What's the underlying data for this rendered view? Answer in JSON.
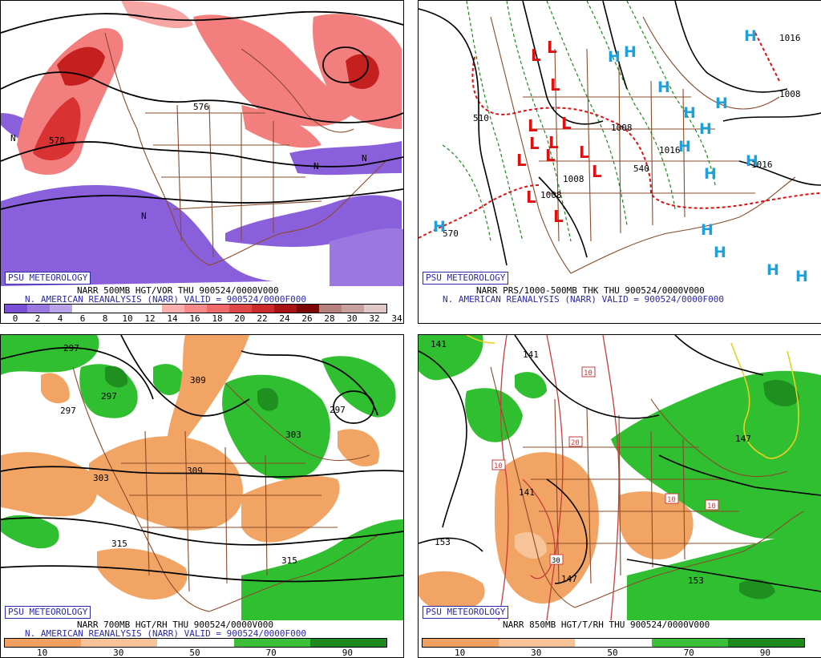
{
  "panels": [
    {
      "badge": "PSU METEOROLOGY",
      "caption1": "NARR 500MB HGT/VOR THU 900524/0000V000",
      "caption2": "N. AMERICAN REANALYSIS (NARR) VALID = 900524/0000F000",
      "colorbar_ticks": [
        "0",
        "2",
        "4",
        "6",
        "8",
        "10",
        "12",
        "14",
        "16",
        "18",
        "20",
        "22",
        "24",
        "26",
        "28",
        "30",
        "32",
        "34"
      ],
      "colorbar_colors": [
        "#7a4fd6",
        "#9a78e0",
        "#b9a3ea",
        "#ffffff",
        "#ffffff",
        "#ffffff",
        "#ffffff",
        "#fbb0b0",
        "#f78a8a",
        "#f06a6a",
        "#e04848",
        "#cc2a2a",
        "#a81414",
        "#7a0606",
        "#b87f7f",
        "#c8a0a0",
        "#e0c8c8"
      ],
      "map_labels": [
        "570",
        "576",
        "N",
        "N",
        "N",
        "N"
      ]
    },
    {
      "badge": "PSU METEOROLOGY",
      "caption1": "NARR PRS/1000-500MB THK THU 900524/0000V000",
      "caption2": "N. AMERICAN REANALYSIS (NARR) VALID = 900524/0000F000",
      "map_labels": [
        "1016",
        "1008",
        "1008",
        "1008",
        "1008",
        "1016",
        "1016",
        "570",
        "540",
        "510",
        "L",
        "H"
      ]
    },
    {
      "badge": "PSU METEOROLOGY",
      "caption1": "NARR 700MB HGT/RH THU 900524/0000V000",
      "caption2": "N. AMERICAN REANALYSIS (NARR) VALID = 900524/0000F000",
      "colorbar_ticks": [
        "10",
        "30",
        "50",
        "70",
        "90"
      ],
      "colorbar_colors": [
        "#f0a060",
        "#f6c498",
        "#ffffff",
        "#3cc03c",
        "#1e8a1e"
      ],
      "map_labels": [
        "297",
        "297",
        "297",
        "297",
        "303",
        "303",
        "309",
        "309",
        "315",
        "315"
      ]
    },
    {
      "badge": "PSU METEOROLOGY",
      "caption1": "NARR 850MB HGT/T/RH THU 900524/0000V000",
      "caption2": "",
      "colorbar_ticks": [
        "10",
        "30",
        "50",
        "70",
        "90"
      ],
      "colorbar_colors": [
        "#f0a060",
        "#f6c498",
        "#ffffff",
        "#3cc03c",
        "#1e8a1e"
      ],
      "map_labels": [
        "141",
        "141",
        "141",
        "147",
        "147",
        "153",
        "153",
        "10",
        "10",
        "10",
        "10",
        "20",
        "30"
      ]
    }
  ],
  "colors": {
    "vort_purple": "#8a5fdc",
    "vort_red": "#f07a7a",
    "vort_dark_red": "#c42020",
    "rh_dry": "#f2a464",
    "rh_moist": "#30bf30",
    "rh_wet": "#1f8f1f",
    "coast": "#8a4a2a",
    "low_red": "#e01010",
    "high_blue": "#1ea0dc",
    "thick_green": "#1a8a1a",
    "thick_red": "#dd1111",
    "badge_blue": "#2a2aa8"
  }
}
